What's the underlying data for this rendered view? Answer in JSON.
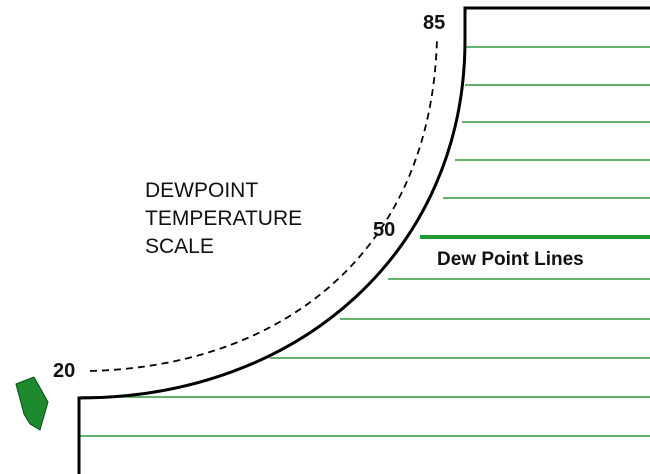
{
  "scale_labels": {
    "top": "85",
    "middle": "50",
    "bottom": "20"
  },
  "scale_title": [
    "DEWPOINT",
    "TEMPERATURE",
    "SCALE"
  ],
  "lines_label": "Dew Point Lines"
}
